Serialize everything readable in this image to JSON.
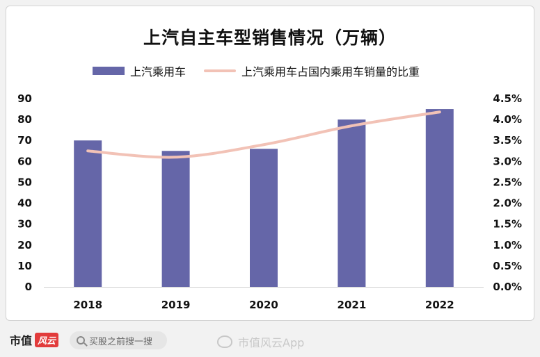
{
  "chart_data": {
    "type": "bar",
    "title": "上汽自主车型销售情况（万辆）",
    "categories": [
      "2018",
      "2019",
      "2020",
      "2021",
      "2022"
    ],
    "series": [
      {
        "name": "上汽乘用车",
        "type": "bar",
        "axis": "left",
        "values": [
          70,
          65,
          66,
          80,
          85
        ]
      },
      {
        "name": "上汽乘用车占国内乘用车销量的比重",
        "type": "line",
        "axis": "right",
        "values": [
          3.25,
          3.1,
          3.4,
          3.85,
          4.18
        ]
      }
    ],
    "ylim": [
      0,
      90
    ],
    "yticks": [
      "0",
      "10",
      "20",
      "30",
      "40",
      "50",
      "60",
      "70",
      "80",
      "90"
    ],
    "y2lim": [
      0,
      4.5
    ],
    "y2ticks": [
      "0.0%",
      "0.5%",
      "1.0%",
      "1.5%",
      "2.0%",
      "2.5%",
      "3.0%",
      "3.5%",
      "4.0%",
      "4.5%"
    ],
    "legend_position": "top",
    "grid": false,
    "colors": {
      "bar": "#6566a8",
      "line": "#f2c2b6"
    }
  },
  "footer": {
    "brand": "市值",
    "brand_seal": "风云",
    "search_placeholder": "买股之前搜一搜",
    "weibo_text": "市值风云App"
  }
}
